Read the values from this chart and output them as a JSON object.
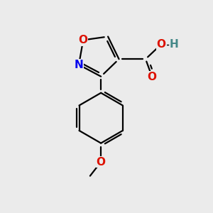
{
  "background_color": "#ebebeb",
  "bond_color": "#000000",
  "bond_width": 1.6,
  "atoms": {
    "N": {
      "color": "#0000ee",
      "fontsize": 11
    },
    "O_ring": {
      "color": "#dd1100",
      "fontsize": 11
    },
    "O_cooh1": {
      "color": "#dd1100",
      "fontsize": 11
    },
    "O_cooh2": {
      "color": "#dd1100",
      "fontsize": 11
    },
    "H_cooh": {
      "color": "#448888",
      "fontsize": 11
    },
    "O_methoxy": {
      "color": "#dd1100",
      "fontsize": 11
    }
  },
  "figsize": [
    3.0,
    3.0
  ],
  "dpi": 100,
  "xlim": [
    0,
    10
  ],
  "ylim": [
    0,
    10
  ]
}
